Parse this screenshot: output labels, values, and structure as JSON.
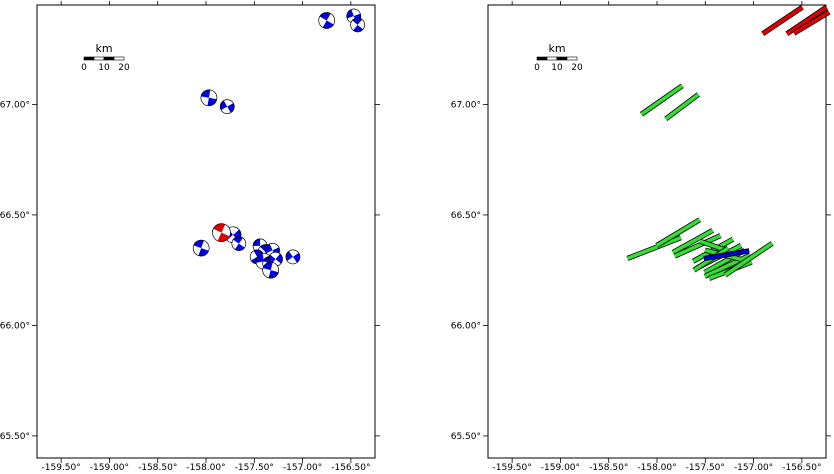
{
  "chart_data": [
    {
      "type": "scatter",
      "subtype": "focal-mechanism-map",
      "xlim": [
        -159.75,
        -156.25
      ],
      "ylim": [
        65.4,
        67.45
      ],
      "x_ticks": [
        -159.5,
        -159.0,
        -158.5,
        -158.0,
        -157.5,
        -157.0,
        -156.5
      ],
      "x_tick_labels": [
        "-159.50°",
        "-159.00°",
        "-158.50°",
        "-158.00°",
        "-157.50°",
        "-157.00°",
        "-156.50°"
      ],
      "y_ticks": [
        65.5,
        66.0,
        66.5,
        67.0
      ],
      "y_tick_labels": [
        "65.50°",
        "66.00°",
        "66.50°",
        "67.00°"
      ],
      "grid": false,
      "scale_bar": {
        "unit": "km",
        "labels": [
          "0",
          "10",
          "20"
        ]
      },
      "colors": {
        "primary": "#0000dd",
        "highlight": "#dd0000",
        "frame": "#000000"
      },
      "series": [
        {
          "color": "#0000dd",
          "points": [
            {
              "lon": -156.75,
              "lat": 67.38,
              "size": 8,
              "rot": 30
            },
            {
              "lon": -156.47,
              "lat": 67.4,
              "size": 7,
              "rot": -20
            },
            {
              "lon": -156.43,
              "lat": 67.36,
              "size": 7,
              "rot": 40
            },
            {
              "lon": -157.97,
              "lat": 67.03,
              "size": 8,
              "rot": 10
            },
            {
              "lon": -157.78,
              "lat": 66.99,
              "size": 7,
              "rot": -30
            },
            {
              "lon": -158.05,
              "lat": 66.35,
              "size": 8,
              "rot": 20
            },
            {
              "lon": -157.72,
              "lat": 66.41,
              "size": 8,
              "rot": -40
            },
            {
              "lon": -157.66,
              "lat": 66.37,
              "size": 7,
              "rot": 35
            },
            {
              "lon": -157.44,
              "lat": 66.36,
              "size": 7,
              "rot": 0
            },
            {
              "lon": -157.38,
              "lat": 66.33,
              "size": 8,
              "rot": 45
            },
            {
              "lon": -157.31,
              "lat": 66.34,
              "size": 7,
              "rot": -25
            },
            {
              "lon": -157.47,
              "lat": 66.31,
              "size": 7,
              "rot": 60
            },
            {
              "lon": -157.4,
              "lat": 66.29,
              "size": 8,
              "rot": -10
            },
            {
              "lon": -157.34,
              "lat": 66.28,
              "size": 7,
              "rot": 20
            },
            {
              "lon": -157.28,
              "lat": 66.3,
              "size": 7,
              "rot": -50
            },
            {
              "lon": -157.33,
              "lat": 66.25,
              "size": 8,
              "rot": 15
            },
            {
              "lon": -157.1,
              "lat": 66.31,
              "size": 7,
              "rot": -35
            }
          ]
        },
        {
          "color": "#dd0000",
          "points": [
            {
              "lon": -157.84,
              "lat": 66.42,
              "size": 9,
              "rot": 25
            }
          ]
        }
      ]
    },
    {
      "type": "scatter",
      "subtype": "fault-plane-map",
      "xlim": [
        -159.75,
        -156.25
      ],
      "ylim": [
        65.4,
        67.45
      ],
      "x_ticks": [
        -159.5,
        -159.0,
        -158.5,
        -158.0,
        -157.5,
        -157.0,
        -156.5
      ],
      "x_tick_labels": [
        "-159.50°",
        "-159.00°",
        "-158.50°",
        "-158.00°",
        "-157.50°",
        "-157.00°",
        "-156.50°"
      ],
      "y_ticks": [
        65.5,
        66.0,
        66.5,
        67.0
      ],
      "y_tick_labels": [
        "65.50°",
        "66.00°",
        "66.50°",
        "67.00°"
      ],
      "grid": false,
      "scale_bar": {
        "unit": "km",
        "labels": [
          "0",
          "10",
          "20"
        ]
      },
      "colors": {
        "frame": "#000000"
      },
      "series": [
        {
          "color": "#dd0000",
          "segments": [
            {
              "lon": -156.7,
              "lat": 67.38,
              "len": 0.21,
              "az": 125
            },
            {
              "lon": -156.45,
              "lat": 67.38,
              "len": 0.21,
              "az": 125
            },
            {
              "lon": -156.4,
              "lat": 67.37,
              "len": 0.18,
              "az": 122
            }
          ]
        },
        {
          "color": "#33dd33",
          "segments": [
            {
              "lon": -157.95,
              "lat": 67.02,
              "len": 0.22,
              "az": 126
            },
            {
              "lon": -157.74,
              "lat": 66.99,
              "len": 0.18,
              "az": 128
            },
            {
              "lon": -158.03,
              "lat": 66.35,
              "len": 0.25,
              "az": 112
            },
            {
              "lon": -157.78,
              "lat": 66.42,
              "len": 0.22,
              "az": 122
            },
            {
              "lon": -157.63,
              "lat": 66.38,
              "len": 0.2,
              "az": 120
            },
            {
              "lon": -157.58,
              "lat": 66.36,
              "len": 0.22,
              "az": 115
            },
            {
              "lon": -157.42,
              "lat": 66.34,
              "len": 0.2,
              "az": 120
            },
            {
              "lon": -157.35,
              "lat": 66.35,
              "len": 0.18,
              "az": 70
            },
            {
              "lon": -157.36,
              "lat": 66.31,
              "len": 0.22,
              "az": 118
            },
            {
              "lon": -157.3,
              "lat": 66.29,
              "len": 0.2,
              "az": 120
            },
            {
              "lon": -157.27,
              "lat": 66.27,
              "len": 0.22,
              "az": 116
            },
            {
              "lon": -157.24,
              "lat": 66.25,
              "len": 0.2,
              "az": 112
            },
            {
              "lon": -157.32,
              "lat": 66.32,
              "len": 0.16,
              "az": 75
            },
            {
              "lon": -157.05,
              "lat": 66.3,
              "len": 0.25,
              "az": 125
            },
            {
              "lon": -157.44,
              "lat": 66.3,
              "len": 0.18,
              "az": 124
            }
          ]
        },
        {
          "color": "#0000cc",
          "segments": [
            {
              "lon": -157.28,
              "lat": 66.32,
              "len": 0.2,
              "az": 100
            }
          ]
        }
      ]
    }
  ]
}
